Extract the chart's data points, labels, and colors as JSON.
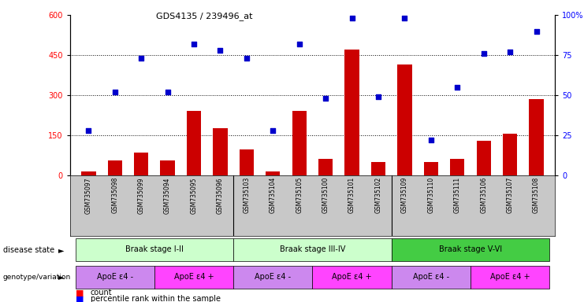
{
  "title": "GDS4135 / 239496_at",
  "samples": [
    "GSM735097",
    "GSM735098",
    "GSM735099",
    "GSM735094",
    "GSM735095",
    "GSM735096",
    "GSM735103",
    "GSM735104",
    "GSM735105",
    "GSM735100",
    "GSM735101",
    "GSM735102",
    "GSM735109",
    "GSM735110",
    "GSM735111",
    "GSM735106",
    "GSM735107",
    "GSM735108"
  ],
  "counts": [
    15,
    55,
    85,
    55,
    240,
    175,
    95,
    15,
    240,
    60,
    470,
    50,
    415,
    50,
    60,
    130,
    155,
    285
  ],
  "percentiles": [
    28,
    52,
    73,
    52,
    82,
    78,
    73,
    28,
    82,
    48,
    98,
    49,
    98,
    22,
    55,
    76,
    77,
    90
  ],
  "disease_colors": [
    "#ccffcc",
    "#ccffcc",
    "#44cc44"
  ],
  "disease_labels": [
    "Braak stage I-II",
    "Braak stage III-IV",
    "Braak stage V-VI"
  ],
  "disease_ranges": [
    [
      0,
      5
    ],
    [
      6,
      11
    ],
    [
      12,
      17
    ]
  ],
  "geno_colors": [
    "#cc88ee",
    "#ff44ff",
    "#cc88ee",
    "#ff44ff",
    "#cc88ee",
    "#ff44ff"
  ],
  "geno_labels": [
    "ApoE ε4 -",
    "ApoE ε4 +",
    "ApoE ε4 -",
    "ApoE ε4 +",
    "ApoE ε4 -",
    "ApoE ε4 +"
  ],
  "geno_ranges": [
    [
      0,
      2
    ],
    [
      3,
      5
    ],
    [
      6,
      8
    ],
    [
      9,
      11
    ],
    [
      12,
      14
    ],
    [
      15,
      17
    ]
  ],
  "bar_color": "#cc0000",
  "scatter_color": "#0000cc",
  "left_ylim": [
    0,
    600
  ],
  "right_ylim": [
    0,
    100
  ],
  "left_yticks": [
    0,
    150,
    300,
    450,
    600
  ],
  "right_yticks": [
    0,
    25,
    50,
    75,
    100
  ],
  "right_yticklabels": [
    "0",
    "25",
    "50",
    "75",
    "100%"
  ],
  "dotted_line_values": [
    150,
    300,
    450
  ],
  "label_count": "count",
  "label_percentile": "percentile rank within the sample",
  "group_dividers": [
    5.5,
    11.5
  ]
}
